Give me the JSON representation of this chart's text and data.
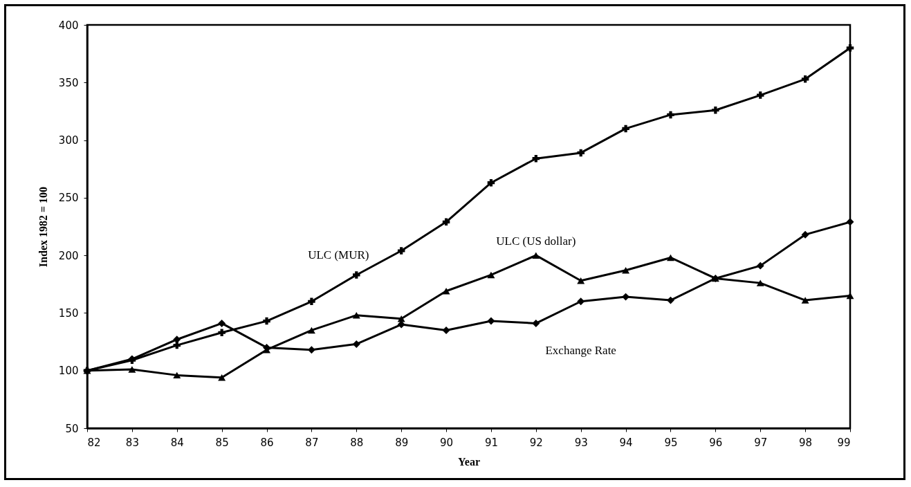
{
  "chart_data": {
    "type": "line",
    "xlabel": "Year",
    "ylabel": "Index 1982 = 100",
    "x": [
      82,
      83,
      84,
      85,
      86,
      87,
      88,
      89,
      90,
      91,
      92,
      93,
      94,
      95,
      96,
      97,
      98,
      99
    ],
    "xlim": [
      82,
      99
    ],
    "xticks": [
      82,
      83,
      84,
      85,
      86,
      87,
      88,
      89,
      90,
      91,
      92,
      93,
      94,
      95,
      96,
      97,
      98,
      99
    ],
    "ylim": [
      50,
      400
    ],
    "yticks": [
      50,
      100,
      150,
      200,
      250,
      300,
      350,
      400
    ],
    "grid": false,
    "legend": false,
    "line_style": "solid",
    "series": [
      {
        "name": "ULC (MUR)",
        "color": "#000000",
        "marker": "cross",
        "values": [
          100,
          109,
          122,
          133,
          143,
          160,
          183,
          204,
          229,
          263,
          284,
          289,
          310,
          322,
          326,
          339,
          353,
          380
        ]
      },
      {
        "name": "Exchange Rate",
        "color": "#000000",
        "marker": "diamond",
        "values": [
          100,
          110,
          127,
          141,
          120,
          118,
          123,
          140,
          135,
          143,
          141,
          160,
          164,
          161,
          180,
          191,
          218,
          229
        ]
      },
      {
        "name": "ULC (US dollar)",
        "color": "#000000",
        "marker": "triangle",
        "values": [
          100,
          101,
          96,
          94,
          118,
          135,
          148,
          145,
          169,
          183,
          200,
          178,
          187,
          198,
          180,
          176,
          161,
          165
        ]
      }
    ]
  }
}
